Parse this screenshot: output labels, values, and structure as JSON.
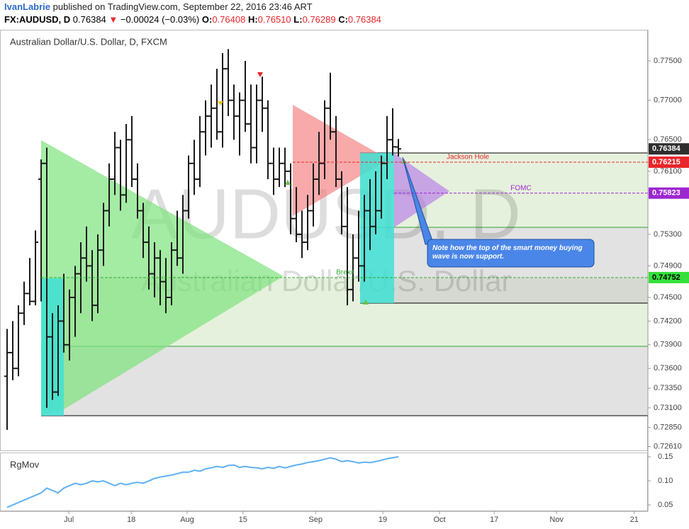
{
  "header": {
    "publisher": "IvanLabrie",
    "published": "published on TradingView.com, September 22, 2016 23:46 ART",
    "symbol": "FX:AUDUSD, D",
    "last": "0.76384",
    "arrow": "▼",
    "change": "−0.00024 (−0.03%)",
    "o_label": "O:",
    "o": "0.76408",
    "h_label": "H:",
    "h": "0.76510",
    "l_label": "L:",
    "l": "0.76289",
    "c_label": "C:",
    "c": "0.76384"
  },
  "chart_data": [
    {
      "type": "ohlc",
      "title": "Australian Dollar/U.S. Dollar, D, FXCM",
      "watermark": "AUDUSD, D",
      "watermark_sub": "Australian Dollar/U.S. Dollar",
      "color": "#1a1a1a",
      "open": [
        0.735,
        0.738,
        0.736,
        0.743,
        0.7455,
        0.7445,
        0.76,
        0.762,
        0.74,
        0.733,
        0.742,
        0.739,
        0.745,
        0.748,
        0.75,
        0.749,
        0.744,
        0.751,
        0.756,
        0.76,
        0.764,
        0.758,
        0.765,
        0.76,
        0.756,
        0.752,
        0.748,
        0.75,
        0.747,
        0.745,
        0.751,
        0.75,
        0.756,
        0.762,
        0.76,
        0.766,
        0.768,
        0.769,
        0.766,
        0.774,
        0.77,
        0.768,
        0.77,
        0.767,
        0.764,
        0.77,
        0.769,
        0.762,
        0.76,
        0.762,
        0.761,
        0.755,
        0.753,
        0.752,
        0.756,
        0.76,
        0.762,
        0.769,
        0.766,
        0.76,
        0.754,
        0.746,
        0.75,
        0.749,
        0.756,
        0.754,
        0.756,
        0.762,
        0.765,
        0.76408
      ],
      "high": [
        0.741,
        0.742,
        0.744,
        0.747,
        0.75,
        0.7535,
        0.7625,
        0.764,
        0.743,
        0.744,
        0.748,
        0.746,
        0.749,
        0.752,
        0.754,
        0.751,
        0.753,
        0.757,
        0.762,
        0.766,
        0.765,
        0.767,
        0.768,
        0.762,
        0.757,
        0.754,
        0.752,
        0.751,
        0.75,
        0.752,
        0.756,
        0.758,
        0.763,
        0.765,
        0.768,
        0.77,
        0.772,
        0.774,
        0.776,
        0.7765,
        0.772,
        0.771,
        0.775,
        0.772,
        0.772,
        0.773,
        0.77,
        0.764,
        0.764,
        0.764,
        0.762,
        0.759,
        0.756,
        0.758,
        0.762,
        0.766,
        0.77,
        0.7735,
        0.768,
        0.761,
        0.759,
        0.753,
        0.756,
        0.758,
        0.76,
        0.761,
        0.763,
        0.768,
        0.769,
        0.7651
      ],
      "low": [
        0.7282,
        0.7345,
        0.735,
        0.7415,
        0.744,
        0.744,
        0.7445,
        0.731,
        0.732,
        0.7325,
        0.738,
        0.737,
        0.74,
        0.743,
        0.747,
        0.742,
        0.743,
        0.749,
        0.754,
        0.758,
        0.756,
        0.757,
        0.759,
        0.755,
        0.75,
        0.746,
        0.745,
        0.744,
        0.743,
        0.744,
        0.749,
        0.748,
        0.755,
        0.758,
        0.759,
        0.763,
        0.764,
        0.765,
        0.764,
        0.768,
        0.765,
        0.763,
        0.766,
        0.762,
        0.762,
        0.766,
        0.76,
        0.758,
        0.759,
        0.759,
        0.753,
        0.752,
        0.75,
        0.751,
        0.754,
        0.758,
        0.76,
        0.765,
        0.759,
        0.753,
        0.744,
        0.7445,
        0.747,
        0.747,
        0.751,
        0.753,
        0.755,
        0.76,
        0.763,
        0.76289
      ],
      "close": [
        0.738,
        0.736,
        0.743,
        0.7455,
        0.7445,
        0.752,
        0.762,
        0.74,
        0.733,
        0.742,
        0.739,
        0.745,
        0.748,
        0.75,
        0.749,
        0.744,
        0.751,
        0.756,
        0.76,
        0.764,
        0.758,
        0.765,
        0.76,
        0.756,
        0.752,
        0.748,
        0.75,
        0.747,
        0.745,
        0.751,
        0.75,
        0.756,
        0.762,
        0.76,
        0.766,
        0.768,
        0.769,
        0.766,
        0.774,
        0.77,
        0.768,
        0.77,
        0.767,
        0.764,
        0.77,
        0.769,
        0.762,
        0.76,
        0.762,
        0.761,
        0.755,
        0.753,
        0.752,
        0.756,
        0.76,
        0.762,
        0.769,
        0.766,
        0.76,
        0.754,
        0.746,
        0.75,
        0.749,
        0.756,
        0.754,
        0.756,
        0.762,
        0.765,
        0.7641,
        0.76384
      ],
      "xlim": [
        -1.25,
        113.0
      ],
      "ylim": [
        0.72551,
        0.77895
      ],
      "yticks": [
        {
          "value": 0.775,
          "label": "0.77500"
        },
        {
          "value": 0.77,
          "label": "0.77000"
        },
        {
          "value": 0.765,
          "label": "0.76500"
        },
        {
          "value": 0.761,
          "label": "0.76100"
        },
        {
          "value": 0.753,
          "label": "0.75300"
        },
        {
          "value": 0.749,
          "label": "0.74900"
        },
        {
          "value": 0.745,
          "label": "0.74500"
        },
        {
          "value": 0.742,
          "label": "0.74200"
        },
        {
          "value": 0.739,
          "label": "0.73900"
        },
        {
          "value": 0.736,
          "label": "0.73600"
        },
        {
          "value": 0.7335,
          "label": "0.73350"
        },
        {
          "value": 0.731,
          "label": "0.73100"
        },
        {
          "value": 0.7285,
          "label": "0.72850"
        },
        {
          "value": 0.7261,
          "label": "0.72610"
        }
      ],
      "price_labels": [
        {
          "value": 0.76384,
          "label": "0.76384",
          "color": "#2f2f2f"
        },
        {
          "value": 0.76215,
          "label": "0.76215",
          "color": "#e8262b"
        },
        {
          "value": 0.75823,
          "label": "0.75823",
          "color": "#9c27d0"
        },
        {
          "value": 0.74752,
          "label": "0.74752",
          "color": "#35e03a"
        }
      ],
      "annotations": {
        "jackson_hole": "Jackson Hole",
        "fomc": "FOMC",
        "brexit": "Brexit",
        "callout": "Note how the top of the smart money buying wave is now support."
      }
    },
    {
      "type": "line",
      "title": "RgMov",
      "color": "#5fb0f0",
      "values": [
        0.045,
        0.05,
        0.055,
        0.06,
        0.065,
        0.07,
        0.075,
        0.085,
        0.08,
        0.075,
        0.085,
        0.09,
        0.095,
        0.092,
        0.095,
        0.1,
        0.098,
        0.1,
        0.095,
        0.09,
        0.095,
        0.092,
        0.095,
        0.097,
        0.095,
        0.1,
        0.105,
        0.108,
        0.11,
        0.112,
        0.115,
        0.118,
        0.118,
        0.122,
        0.12,
        0.125,
        0.127,
        0.13,
        0.128,
        0.132,
        0.133,
        0.128,
        0.13,
        0.128,
        0.127,
        0.125,
        0.128,
        0.126,
        0.13,
        0.127,
        0.13,
        0.133,
        0.135,
        0.138,
        0.14,
        0.142,
        0.145,
        0.148,
        0.145,
        0.14,
        0.142,
        0.14,
        0.137,
        0.139,
        0.138,
        0.14,
        0.143,
        0.146,
        0.148,
        0.15
      ],
      "xlim": [
        -1.25,
        113.0
      ],
      "ylim": [
        0.0368,
        0.1574
      ],
      "yticks": [
        0.15,
        {
          "value": 0.1,
          "label": "0.10"
        },
        0.05
      ],
      "xticks": [
        {
          "value": 10.9,
          "label": "Jul"
        },
        {
          "value": 21.9,
          "label": "18"
        },
        {
          "value": 31.75,
          "label": "Aug"
        },
        {
          "value": 41.6,
          "label": "15"
        },
        {
          "value": 54.4,
          "label": "Sep"
        },
        {
          "value": 66.25,
          "label": "19"
        },
        {
          "value": 76.25,
          "label": "Oct"
        },
        {
          "value": 85.9,
          "label": "17"
        },
        {
          "value": 96.9,
          "label": "Nov"
        },
        {
          "value": 110.6,
          "label": "21"
        }
      ]
    }
  ]
}
